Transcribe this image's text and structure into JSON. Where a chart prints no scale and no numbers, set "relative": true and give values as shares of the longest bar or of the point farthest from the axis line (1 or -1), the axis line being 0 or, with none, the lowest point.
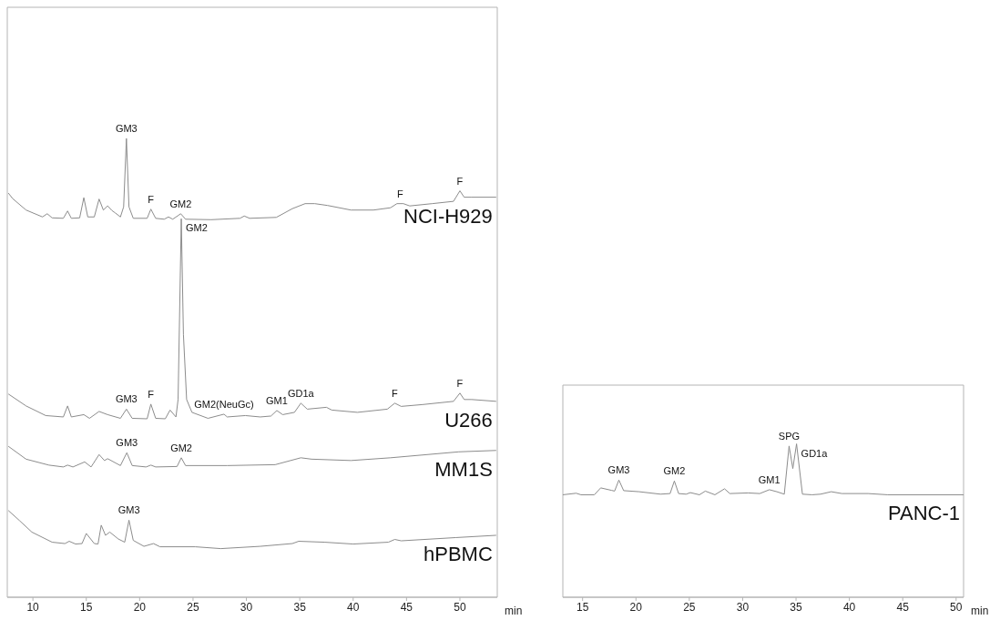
{
  "chart_data": [
    {
      "type": "line",
      "relative": true,
      "xlabel": "min",
      "xlim": [
        7.6,
        53.5
      ],
      "xticks": [
        10,
        15,
        20,
        25,
        30,
        35,
        40,
        45,
        50
      ],
      "marker": "none",
      "series": [
        {
          "name": "NCI-H929",
          "color": "#8c8c8c",
          "x": [
            7.7,
            8.1,
            9.36,
            10.9,
            11.34,
            11.8,
            12.85,
            13.25,
            13.6,
            14.38,
            14.77,
            15.14,
            15.75,
            16.2,
            16.6,
            17.0,
            17.4,
            17.7,
            18.2,
            18.5,
            18.76,
            19.0,
            19.4,
            20.7,
            21.05,
            21.5,
            22.3,
            22.7,
            23.1,
            23.85,
            24.3,
            26.7,
            29.4,
            29.8,
            30.3,
            32.8,
            34.3,
            35.5,
            36.4,
            37.6,
            39.8,
            41.9,
            43.5,
            44.1,
            44.7,
            45.3,
            47.4,
            49.4,
            50.0,
            50.4,
            51.1,
            53.4
          ],
          "values": [
            0.881,
            0.869,
            0.844,
            0.829,
            0.836,
            0.827,
            0.826,
            0.842,
            0.826,
            0.827,
            0.871,
            0.829,
            0.829,
            0.868,
            0.844,
            0.853,
            0.843,
            0.838,
            0.829,
            0.851,
            1.0,
            0.851,
            0.826,
            0.826,
            0.846,
            0.826,
            0.824,
            0.829,
            0.824,
            0.836,
            0.824,
            0.823,
            0.826,
            0.831,
            0.826,
            0.828,
            0.847,
            0.858,
            0.858,
            0.854,
            0.844,
            0.844,
            0.849,
            0.858,
            0.858,
            0.853,
            0.858,
            0.863,
            0.886,
            0.872,
            0.872,
            0.872
          ]
        },
        {
          "name": "U266",
          "color": "#8c8c8c",
          "x": [
            7.7,
            9.36,
            11.2,
            12.85,
            13.25,
            13.6,
            14.77,
            15.3,
            16.2,
            17.0,
            18.2,
            18.76,
            19.3,
            20.7,
            21.05,
            21.5,
            22.4,
            22.85,
            23.4,
            23.6,
            23.9,
            24.1,
            24.4,
            24.9,
            26.4,
            27.9,
            28.2,
            29.9,
            31.3,
            32.3,
            32.85,
            33.4,
            34.5,
            35.1,
            35.7,
            37.5,
            38.0,
            40.4,
            43.2,
            43.9,
            44.5,
            46.5,
            49.4,
            50.0,
            50.4,
            51.1,
            53.4
          ],
          "values": [
            0.443,
            0.417,
            0.396,
            0.393,
            0.417,
            0.393,
            0.398,
            0.39,
            0.405,
            0.398,
            0.39,
            0.41,
            0.39,
            0.389,
            0.421,
            0.39,
            0.389,
            0.408,
            0.393,
            0.431,
            0.825,
            0.573,
            0.431,
            0.403,
            0.39,
            0.399,
            0.393,
            0.396,
            0.393,
            0.395,
            0.407,
            0.398,
            0.403,
            0.423,
            0.41,
            0.414,
            0.408,
            0.403,
            0.41,
            0.423,
            0.416,
            0.42,
            0.427,
            0.445,
            0.431,
            0.431,
            0.427
          ]
        },
        {
          "name": "MM1S",
          "color": "#8c8c8c",
          "x": [
            7.7,
            9.36,
            11.5,
            12.85,
            13.25,
            13.75,
            14.85,
            15.45,
            16.2,
            16.7,
            17.0,
            18.2,
            18.8,
            19.3,
            20.6,
            21.05,
            21.5,
            23.5,
            23.9,
            24.3,
            28.2,
            32.7,
            35.1,
            36.1,
            39.8,
            43.5,
            49.9,
            53.4
          ],
          "values": [
            0.329,
            0.301,
            0.288,
            0.284,
            0.288,
            0.284,
            0.295,
            0.284,
            0.311,
            0.298,
            0.302,
            0.287,
            0.315,
            0.287,
            0.284,
            0.288,
            0.284,
            0.285,
            0.304,
            0.287,
            0.287,
            0.289,
            0.304,
            0.301,
            0.298,
            0.304,
            0.317,
            0.32
          ]
        },
        {
          "name": "hPBMC",
          "color": "#8c8c8c",
          "x": [
            7.7,
            8.75,
            9.9,
            11.8,
            13.0,
            13.4,
            14.0,
            14.6,
            15.0,
            15.75,
            16.1,
            16.4,
            16.8,
            17.2,
            18.0,
            18.6,
            19.0,
            19.4,
            20.4,
            21.3,
            21.9,
            25.2,
            27.6,
            31.3,
            34.3,
            34.9,
            37.3,
            40.0,
            43.3,
            43.9,
            44.5,
            49.6,
            53.4
          ],
          "values": [
            0.189,
            0.167,
            0.142,
            0.12,
            0.117,
            0.122,
            0.116,
            0.117,
            0.139,
            0.117,
            0.116,
            0.157,
            0.135,
            0.142,
            0.127,
            0.12,
            0.168,
            0.124,
            0.111,
            0.117,
            0.11,
            0.11,
            0.106,
            0.111,
            0.117,
            0.122,
            0.12,
            0.116,
            0.12,
            0.126,
            0.123,
            0.13,
            0.135
          ]
        }
      ],
      "annotations": [
        {
          "text": "GM3",
          "x": 18.76,
          "y": 1.0
        },
        {
          "text": "F",
          "x": 21.05,
          "y": 0.846
        },
        {
          "text": "GM2",
          "x": 23.85,
          "y": 0.836
        },
        {
          "text": "F",
          "x": 44.4,
          "y": 0.858
        },
        {
          "text": "F",
          "x": 50.0,
          "y": 0.886
        },
        {
          "text": "GM3",
          "x": 18.76,
          "y": 0.41
        },
        {
          "text": "F",
          "x": 21.05,
          "y": 0.421
        },
        {
          "text": "GM2",
          "x": 23.9,
          "y": 0.825
        },
        {
          "text": "GM2(NeuGc)",
          "x": 27.9,
          "y": 0.399
        },
        {
          "text": "GM1",
          "x": 32.85,
          "y": 0.407
        },
        {
          "text": "GD1a",
          "x": 35.1,
          "y": 0.423
        },
        {
          "text": "F",
          "x": 43.9,
          "y": 0.423
        },
        {
          "text": "F",
          "x": 50.0,
          "y": 0.445
        },
        {
          "text": "GM3",
          "x": 18.8,
          "y": 0.315
        },
        {
          "text": "GM2",
          "x": 23.9,
          "y": 0.304
        },
        {
          "text": "GM3",
          "x": 19.0,
          "y": 0.168
        }
      ]
    },
    {
      "type": "line",
      "relative": true,
      "xlabel": "min",
      "xlim": [
        13.15,
        50.7
      ],
      "xticks": [
        15,
        20,
        25,
        30,
        35,
        40,
        45,
        50
      ],
      "marker": "none",
      "series": [
        {
          "name": "PANC-1",
          "color": "#8c8c8c",
          "x": [
            13.15,
            14.4,
            14.85,
            16.1,
            16.7,
            17.7,
            18.0,
            18.4,
            18.85,
            20.3,
            22.3,
            23.2,
            23.6,
            24.0,
            24.7,
            25.1,
            25.95,
            26.5,
            27.4,
            28.3,
            28.8,
            30.5,
            31.6,
            32.5,
            33.2,
            33.9,
            34.35,
            34.7,
            35.05,
            35.6,
            36.5,
            37.3,
            38.3,
            39.3,
            41.75,
            43.6,
            50.7
          ],
          "values": [
            0.668,
            0.678,
            0.668,
            0.668,
            0.713,
            0.697,
            0.692,
            0.764,
            0.695,
            0.688,
            0.672,
            0.676,
            0.758,
            0.676,
            0.672,
            0.682,
            0.668,
            0.692,
            0.668,
            0.707,
            0.676,
            0.68,
            0.676,
            0.701,
            0.688,
            0.672,
            0.986,
            0.839,
            1.0,
            0.672,
            0.668,
            0.672,
            0.688,
            0.676,
            0.676,
            0.668,
            0.668
          ]
        }
      ],
      "annotations": [
        {
          "text": "GM3",
          "x": 18.4,
          "y": 0.764
        },
        {
          "text": "GM2",
          "x": 23.6,
          "y": 0.758
        },
        {
          "text": "GM1",
          "x": 32.5,
          "y": 0.701
        },
        {
          "text": "SPG",
          "x": 34.35,
          "y": 0.986
        },
        {
          "text": "GD1a",
          "x": 35.05,
          "y": 1.0
        }
      ]
    }
  ]
}
